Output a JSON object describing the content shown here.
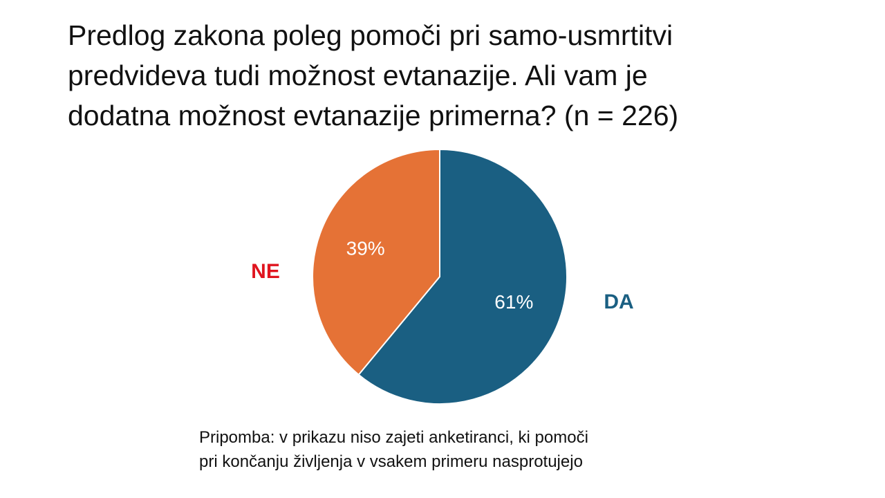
{
  "title_lines": [
    "Predlog zakona poleg pomoči pri samo-usmrtitvi",
    "predvideva tudi možnost evtanazije. Ali vam je",
    "dodatna možnost evtanazije primerna? (n = 226)"
  ],
  "note_lines": [
    "Pripomba: v prikazu niso zajeti anketiranci, ki pomoči",
    "pri končanju življenja v vsakem primeru nasprotujejo"
  ],
  "chart_data": {
    "type": "pie",
    "slices": [
      {
        "label": "DA",
        "value": 61,
        "value_label": "61%",
        "color": "#1a5f82",
        "label_color": "#1a5f82"
      },
      {
        "label": "NE",
        "value": 39,
        "value_label": "39%",
        "color": "#e57236",
        "label_color": "#e0141e"
      }
    ],
    "start": "12 o'clock",
    "direction": "clockwise"
  }
}
